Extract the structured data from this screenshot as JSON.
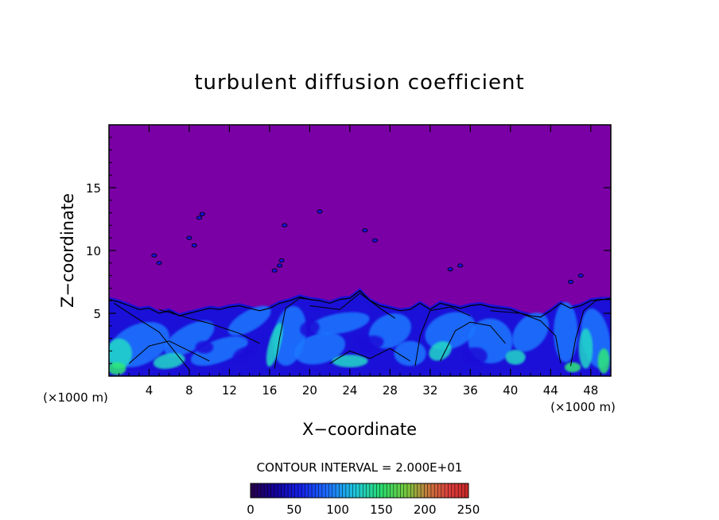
{
  "chart_data": {
    "type": "heatmap",
    "title": "turbulent diffusion coefficient",
    "xlabel": "X−coordinate",
    "ylabel": "Z−coordinate",
    "x_unit_label": "(×1000 m)",
    "y_unit_label": "(×1000 m)",
    "xlim": [
      0,
      50
    ],
    "ylim": [
      0,
      20
    ],
    "x_ticks": [
      4,
      8,
      12,
      16,
      20,
      24,
      28,
      32,
      36,
      40,
      44,
      48
    ],
    "x_tick_labels": [
      "4",
      "8",
      "12",
      "16",
      "20",
      "24",
      "28",
      "32",
      "36",
      "40",
      "44",
      "48"
    ],
    "y_ticks": [
      5,
      10,
      15
    ],
    "y_tick_labels": [
      "5",
      "10",
      "15"
    ],
    "contour_interval_text": "CONTOUR INTERVAL = 2.000E+01",
    "contour_interval": 20,
    "colorbar": {
      "min": 0,
      "max": 250,
      "ticks": [
        0,
        50,
        100,
        150,
        200,
        250
      ],
      "tick_labels": [
        "0",
        "50",
        "100",
        "150",
        "200",
        "250"
      ]
    },
    "background_value": 0,
    "turbulent_layer_top": 6,
    "colors": {
      "background": "#7a00a6",
      "low": "#1a10d8",
      "mid": "#1e78ff",
      "high": "#22d8c8",
      "peak": "#2ee878",
      "contour": "#000000"
    }
  }
}
